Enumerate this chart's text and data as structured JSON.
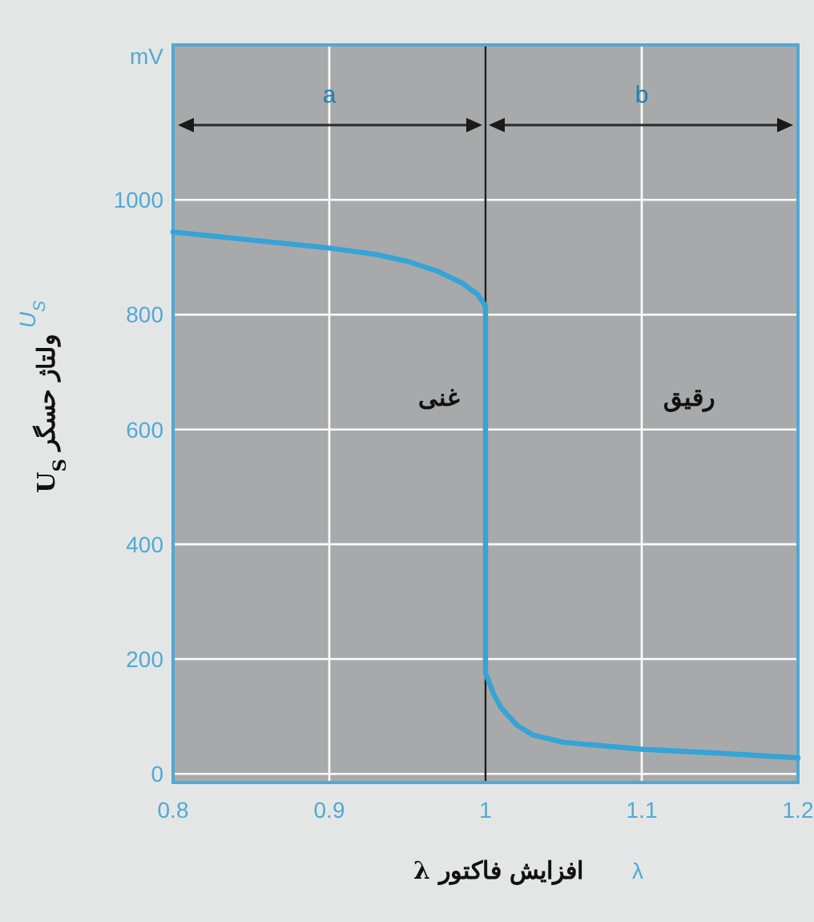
{
  "chart_data": {
    "type": "line",
    "xlabel": "افزایش فاکتور λ",
    "ylabel": "ولتاژ حسگر U$_{S}$",
    "x": [
      0.8,
      0.85,
      0.9,
      0.93,
      0.95,
      0.97,
      0.985,
      0.995,
      1.0,
      1.0,
      1.005,
      1.01,
      1.02,
      1.03,
      1.05,
      1.1,
      1.15,
      1.2
    ],
    "values": [
      944,
      930,
      916,
      905,
      893,
      875,
      855,
      835,
      815,
      176,
      140,
      115,
      85,
      68,
      55,
      43,
      36,
      28
    ],
    "color": "#35a4d6",
    "xlim": [
      0.8,
      1.2
    ],
    "ylim": [
      -15,
      1270
    ],
    "xticks": [
      {
        "value": 0.8,
        "label": "0.8"
      },
      {
        "value": 0.9,
        "label": "0.9"
      },
      1,
      {
        "value": 1.1,
        "label": "1.1"
      },
      {
        "value": 1.2,
        "label": "1.2"
      }
    ],
    "yticks": [
      0,
      200,
      400,
      600,
      800,
      1000
    ],
    "grid": true,
    "ref_lines": [
      {
        "axis": "x",
        "value": 1,
        "color": "#1e1e1e"
      }
    ],
    "annotations": [
      "غنی",
      "رقیق",
      "a",
      "b",
      "mV",
      "U$_{S}$",
      "λ"
    ]
  }
}
